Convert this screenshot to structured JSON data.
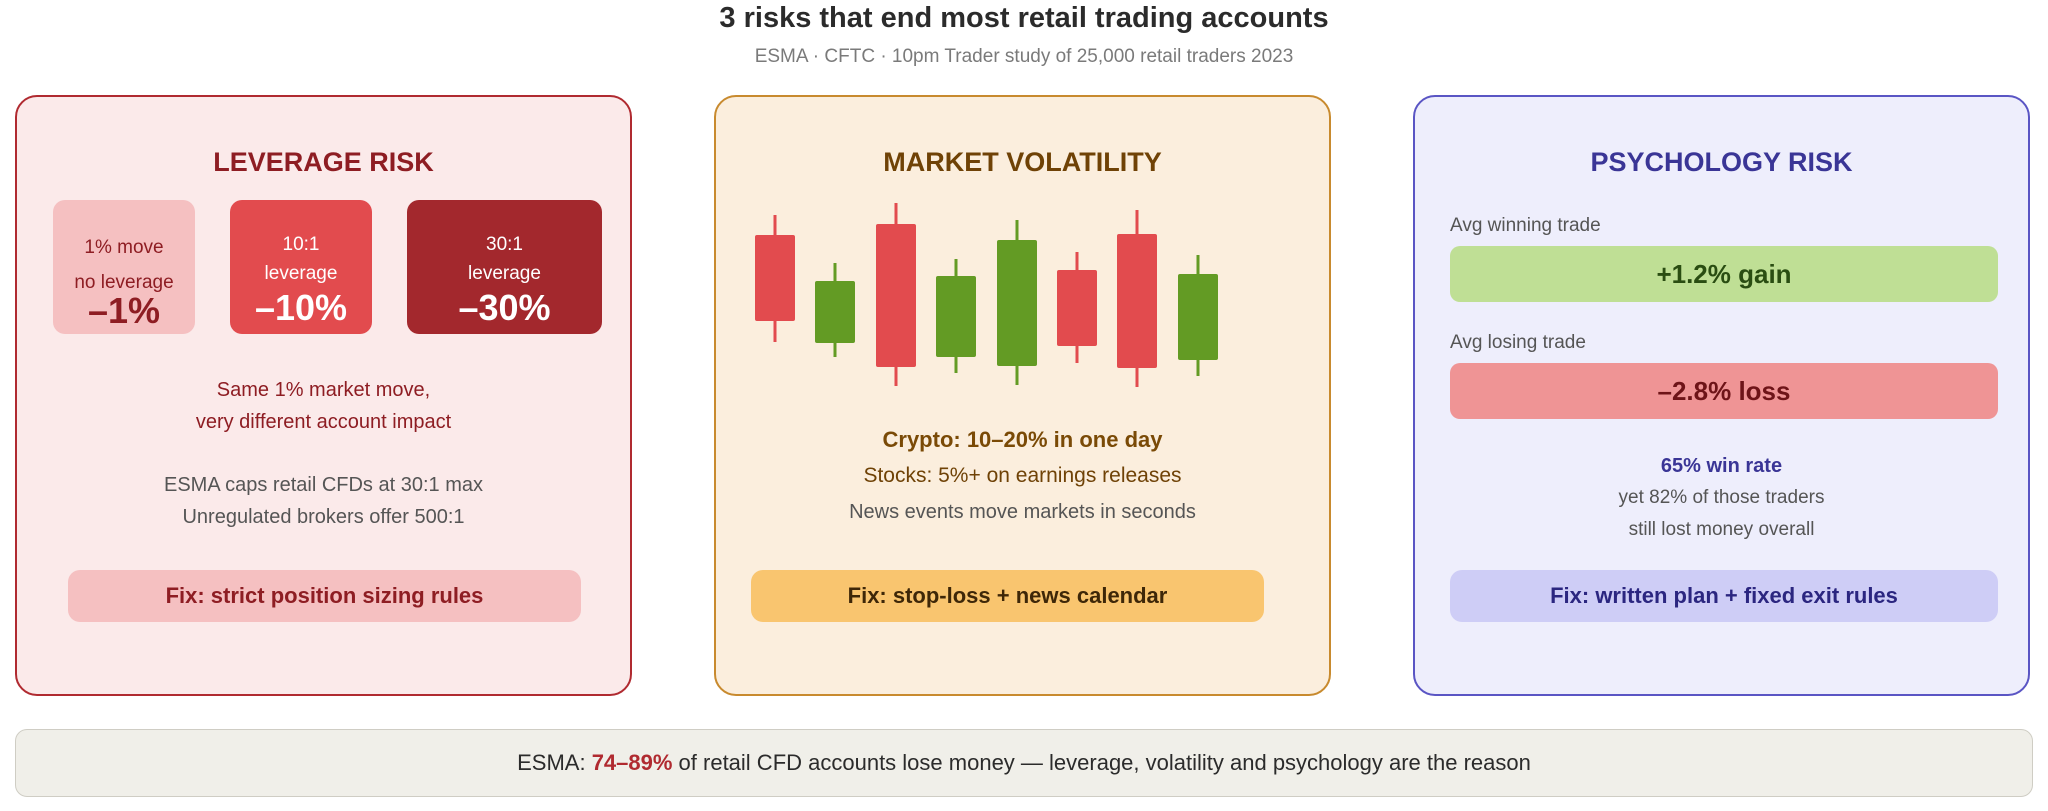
{
  "header": {
    "title": "3 risks that end most retail trading accounts",
    "subtitle": "ESMA · CFTC · 10pm Trader study of 25,000 retail traders 2023"
  },
  "leverage": {
    "title": "LEVERAGE RISK",
    "boxes": [
      {
        "line1": "1% move",
        "line2": "no leverage",
        "value": "–1%"
      },
      {
        "line1": "10:1",
        "line2": "leverage",
        "value": "–10%"
      },
      {
        "line1": "30:1",
        "line2": "leverage",
        "value": "–30%"
      }
    ],
    "note_line1": "Same 1% market move,",
    "note_line2": "very different account impact",
    "info_line1": "ESMA caps retail CFDs at 30:1 max",
    "info_line2": "Unregulated brokers offer 500:1",
    "fix": "Fix: strict position sizing rules"
  },
  "volatility": {
    "title": "MARKET VOLATILITY",
    "stat1": "Crypto: 10–20% in one day",
    "stat2": "Stocks: 5%+ on earnings releases",
    "stat3": "News events move markets in seconds",
    "fix": "Fix: stop-loss + news calendar",
    "colors": {
      "down": "#e24b4e",
      "up": "#639b24"
    }
  },
  "psychology": {
    "title": "PSYCHOLOGY RISK",
    "win_label": "Avg winning trade",
    "win_value": "+1.2% gain",
    "loss_label": "Avg losing trade",
    "loss_value": "–2.8% loss",
    "rate_line1": "65% win rate",
    "rate_line2": "yet 82% of those traders",
    "rate_line3": "still lost money overall",
    "fix": "Fix: written plan + fixed exit rules"
  },
  "footer": {
    "prefix": "ESMA: ",
    "highlight": "74–89%",
    "suffix": " of retail CFD accounts lose money — leverage, volatility and psychology are the reason"
  }
}
